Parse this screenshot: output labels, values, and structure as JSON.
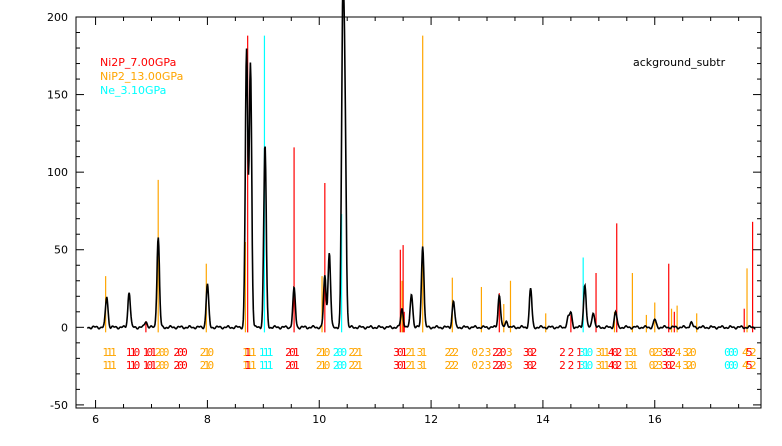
{
  "chart_data": {
    "type": "line",
    "title": "ackground_subtr",
    "xlabel": "",
    "ylabel": "",
    "xlim": [
      5.65,
      17.9
    ],
    "ylim": [
      -52,
      200
    ],
    "x_ticks": [
      6,
      8,
      10,
      12,
      14,
      16
    ],
    "y_ticks": [
      -50,
      0,
      50,
      100,
      150,
      200
    ],
    "grid": false,
    "legend_position": "top-left",
    "colors": {
      "axis": "#000000",
      "pattern": "#000000",
      "ni2p": "#ff0000",
      "nip2": "#ffa500",
      "ne": "#00ffff"
    },
    "series": [
      {
        "name": "Ni2P_7.00GPa",
        "color": "#ff0000",
        "sticks": [
          [
            6.9,
            4
          ],
          [
            8.72,
            188
          ],
          [
            9.55,
            116
          ],
          [
            10.1,
            93
          ],
          [
            11.45,
            50
          ],
          [
            11.5,
            53
          ],
          [
            11.52,
            10
          ],
          [
            13.22,
            22
          ],
          [
            14.5,
            8
          ],
          [
            14.95,
            35
          ],
          [
            15.32,
            67
          ],
          [
            16.25,
            41
          ],
          [
            16.35,
            10
          ],
          [
            17.6,
            12
          ],
          [
            17.75,
            68
          ]
        ]
      },
      {
        "name": "NiP2_13.00GPa",
        "color": "#ffa500",
        "sticks": [
          [
            6.18,
            33
          ],
          [
            7.12,
            95
          ],
          [
            7.98,
            41
          ],
          [
            8.68,
            55
          ],
          [
            10.05,
            33
          ],
          [
            11.48,
            30
          ],
          [
            11.85,
            188
          ],
          [
            12.38,
            32
          ],
          [
            12.9,
            26
          ],
          [
            13.3,
            15
          ],
          [
            13.42,
            30
          ],
          [
            14.05,
            9
          ],
          [
            15.28,
            10
          ],
          [
            15.6,
            35
          ],
          [
            15.85,
            8
          ],
          [
            16.0,
            16
          ],
          [
            16.3,
            12
          ],
          [
            16.4,
            14
          ],
          [
            16.75,
            9
          ],
          [
            17.65,
            38
          ]
        ]
      },
      {
        "name": "Ne_3.10GPa",
        "color": "#00ffff",
        "sticks": [
          [
            9.02,
            188
          ],
          [
            10.4,
            73
          ],
          [
            14.72,
            45
          ]
        ]
      }
    ],
    "measured_pattern": {
      "name": "ackground_subtr",
      "peaks": [
        [
          6.2,
          20
        ],
        [
          6.6,
          23
        ],
        [
          6.9,
          4
        ],
        [
          7.12,
          58
        ],
        [
          8.0,
          28
        ],
        [
          8.7,
          178
        ],
        [
          8.77,
          170
        ],
        [
          9.03,
          118
        ],
        [
          9.55,
          25
        ],
        [
          10.1,
          33
        ],
        [
          10.18,
          48
        ],
        [
          10.42,
          191
        ],
        [
          10.46,
          130
        ],
        [
          11.48,
          12
        ],
        [
          11.65,
          22
        ],
        [
          11.85,
          53
        ],
        [
          12.4,
          17
        ],
        [
          13.22,
          21
        ],
        [
          13.35,
          4
        ],
        [
          13.78,
          25
        ],
        [
          14.45,
          6
        ],
        [
          14.5,
          9
        ],
        [
          14.75,
          28
        ],
        [
          14.9,
          10
        ],
        [
          15.3,
          10
        ],
        [
          16.0,
          5
        ],
        [
          16.65,
          3
        ]
      ],
      "baseline": 0
    },
    "hkl_labels": [
      {
        "x": 6.18,
        "lines": [
          "1",
          "1"
        ],
        "color": "#ffa500"
      },
      {
        "x": 6.25,
        "lines": [
          "1",
          "1"
        ],
        "color": "#ffa500"
      },
      {
        "x": 6.32,
        "lines": [
          "1",
          "1"
        ],
        "color": "#ffa500"
      },
      {
        "x": 6.6,
        "lines": [
          "1",
          "1"
        ],
        "color": "#ff0000"
      },
      {
        "x": 6.67,
        "lines": [
          "1",
          "1"
        ],
        "color": "#ff0000"
      },
      {
        "x": 6.74,
        "lines": [
          "0",
          "0"
        ],
        "color": "#ff0000"
      },
      {
        "x": 6.9,
        "lines": [
          "1",
          "1"
        ],
        "color": "#ff0000"
      },
      {
        "x": 6.97,
        "lines": [
          "0",
          "0"
        ],
        "color": "#ff0000"
      },
      {
        "x": 7.04,
        "lines": [
          "1",
          "1"
        ],
        "color": "#ff0000"
      },
      {
        "x": 7.12,
        "lines": [
          "2",
          "2"
        ],
        "color": "#ffa500"
      },
      {
        "x": 7.19,
        "lines": [
          "0",
          "0"
        ],
        "color": "#ffa500"
      },
      {
        "x": 7.26,
        "lines": [
          "0",
          "0"
        ],
        "color": "#ffa500"
      },
      {
        "x": 7.45,
        "lines": [
          "2",
          "2"
        ],
        "color": "#ff0000"
      },
      {
        "x": 7.52,
        "lines": [
          "0",
          "0"
        ],
        "color": "#ff0000"
      },
      {
        "x": 7.59,
        "lines": [
          "0",
          "0"
        ],
        "color": "#ff0000"
      },
      {
        "x": 7.92,
        "lines": [
          "2",
          "2"
        ],
        "color": "#ffa500"
      },
      {
        "x": 7.99,
        "lines": [
          "1",
          "1"
        ],
        "color": "#ffa500"
      },
      {
        "x": 8.06,
        "lines": [
          "0",
          "0"
        ],
        "color": "#ffa500"
      },
      {
        "x": 8.68,
        "lines": [
          "1",
          "1"
        ],
        "color": "#ffa500"
      },
      {
        "x": 8.75,
        "lines": [
          "1",
          "1"
        ],
        "color": "#ffa500"
      },
      {
        "x": 8.82,
        "lines": [
          "1",
          "1"
        ],
        "color": "#ffa500"
      },
      {
        "x": 8.72,
        "lines": [
          "1",
          "1"
        ],
        "color": "#ff0000"
      },
      {
        "x": 8.98,
        "lines": [
          "1",
          "1"
        ],
        "color": "#00ffff"
      },
      {
        "x": 9.05,
        "lines": [
          "1",
          "1"
        ],
        "color": "#00ffff"
      },
      {
        "x": 9.12,
        "lines": [
          "1",
          "1"
        ],
        "color": "#00ffff"
      },
      {
        "x": 9.45,
        "lines": [
          "2",
          "2"
        ],
        "color": "#ff0000"
      },
      {
        "x": 9.52,
        "lines": [
          "0",
          "0"
        ],
        "color": "#ff0000"
      },
      {
        "x": 9.59,
        "lines": [
          "1",
          "1"
        ],
        "color": "#ff0000"
      },
      {
        "x": 10.0,
        "lines": [
          "2",
          "2"
        ],
        "color": "#ffa500"
      },
      {
        "x": 10.07,
        "lines": [
          "1",
          "1"
        ],
        "color": "#ffa500"
      },
      {
        "x": 10.14,
        "lines": [
          "0",
          "0"
        ],
        "color": "#ffa500"
      },
      {
        "x": 10.3,
        "lines": [
          "2",
          "2"
        ],
        "color": "#00ffff"
      },
      {
        "x": 10.37,
        "lines": [
          "0",
          "0"
        ],
        "color": "#00ffff"
      },
      {
        "x": 10.44,
        "lines": [
          "0",
          "0"
        ],
        "color": "#00ffff"
      },
      {
        "x": 10.58,
        "lines": [
          "2",
          "2"
        ],
        "color": "#ffa500"
      },
      {
        "x": 10.65,
        "lines": [
          "2",
          "2"
        ],
        "color": "#ffa500"
      },
      {
        "x": 10.72,
        "lines": [
          "1",
          "1"
        ],
        "color": "#ffa500"
      },
      {
        "x": 11.38,
        "lines": [
          "3",
          "3"
        ],
        "color": "#ff0000"
      },
      {
        "x": 11.45,
        "lines": [
          "0",
          "0"
        ],
        "color": "#ff0000"
      },
      {
        "x": 11.52,
        "lines": [
          "1",
          "1"
        ],
        "color": "#ff0000"
      },
      {
        "x": 11.6,
        "lines": [
          "2",
          "2"
        ],
        "color": "#ffa500"
      },
      {
        "x": 11.67,
        "lines": [
          "1",
          "1"
        ],
        "color": "#ffa500"
      },
      {
        "x": 11.8,
        "lines": [
          "3",
          "3"
        ],
        "color": "#ffa500"
      },
      {
        "x": 11.87,
        "lines": [
          "1",
          "1"
        ],
        "color": "#ffa500"
      },
      {
        "x": 12.3,
        "lines": [
          "2",
          "2"
        ],
        "color": "#ffa500"
      },
      {
        "x": 12.37,
        "lines": [
          "2",
          "2"
        ],
        "color": "#ffa500"
      },
      {
        "x": 12.44,
        "lines": [
          "2",
          "2"
        ],
        "color": "#ffa500"
      },
      {
        "x": 12.78,
        "lines": [
          "0",
          "0"
        ],
        "color": "#ffa500"
      },
      {
        "x": 12.9,
        "lines": [
          "2",
          "2"
        ],
        "color": "#ffa500"
      },
      {
        "x": 13.02,
        "lines": [
          "3",
          "3"
        ],
        "color": "#ffa500"
      },
      {
        "x": 13.15,
        "lines": [
          "2",
          "2"
        ],
        "color": "#ff0000"
      },
      {
        "x": 13.22,
        "lines": [
          "2",
          "2"
        ],
        "color": "#ff0000"
      },
      {
        "x": 13.29,
        "lines": [
          "0",
          "0"
        ],
        "color": "#ff0000"
      },
      {
        "x": 13.4,
        "lines": [
          "3",
          "3"
        ],
        "color": "#ffa500"
      },
      {
        "x": 13.7,
        "lines": [
          "3",
          "3"
        ],
        "color": "#ff0000"
      },
      {
        "x": 13.77,
        "lines": [
          "0",
          "0"
        ],
        "color": "#ff0000"
      },
      {
        "x": 13.84,
        "lines": [
          "2",
          "2"
        ],
        "color": "#ff0000"
      },
      {
        "x": 14.35,
        "lines": [
          "2",
          "2"
        ],
        "color": "#ff0000"
      },
      {
        "x": 14.5,
        "lines": [
          "2",
          "2"
        ],
        "color": "#ff0000"
      },
      {
        "x": 14.65,
        "lines": [
          "1",
          "1"
        ],
        "color": "#ff0000"
      },
      {
        "x": 14.7,
        "lines": [
          "3",
          "3"
        ],
        "color": "#00ffff"
      },
      {
        "x": 14.77,
        "lines": [
          "1",
          "1"
        ],
        "color": "#00ffff"
      },
      {
        "x": 14.84,
        "lines": [
          "0",
          "0"
        ],
        "color": "#00ffff"
      },
      {
        "x": 15.0,
        "lines": [
          "3",
          "3"
        ],
        "color": "#ffa500"
      },
      {
        "x": 15.07,
        "lines": [
          "1",
          "1"
        ],
        "color": "#ffa500"
      },
      {
        "x": 15.14,
        "lines": [
          "1",
          "1"
        ],
        "color": "#ffa500"
      },
      {
        "x": 15.22,
        "lines": [
          "4",
          "4"
        ],
        "color": "#ff0000"
      },
      {
        "x": 15.29,
        "lines": [
          "0",
          "0"
        ],
        "color": "#ff0000"
      },
      {
        "x": 15.36,
        "lines": [
          "2",
          "2"
        ],
        "color": "#ff0000"
      },
      {
        "x": 15.5,
        "lines": [
          "1",
          "1"
        ],
        "color": "#ffa500"
      },
      {
        "x": 15.57,
        "lines": [
          "3",
          "3"
        ],
        "color": "#ffa500"
      },
      {
        "x": 15.64,
        "lines": [
          "1",
          "1"
        ],
        "color": "#ffa500"
      },
      {
        "x": 15.95,
        "lines": [
          "0",
          "0"
        ],
        "color": "#ffa500"
      },
      {
        "x": 16.02,
        "lines": [
          "2",
          "2"
        ],
        "color": "#ffa500"
      },
      {
        "x": 16.09,
        "lines": [
          "3",
          "3"
        ],
        "color": "#ffa500"
      },
      {
        "x": 16.18,
        "lines": [
          "3",
          "3"
        ],
        "color": "#ff0000"
      },
      {
        "x": 16.25,
        "lines": [
          "0",
          "0"
        ],
        "color": "#ff0000"
      },
      {
        "x": 16.32,
        "lines": [
          "2",
          "2"
        ],
        "color": "#ff0000"
      },
      {
        "x": 16.42,
        "lines": [
          "4",
          "4"
        ],
        "color": "#ffa500"
      },
      {
        "x": 16.55,
        "lines": [
          "3",
          "3"
        ],
        "color": "#ffa500"
      },
      {
        "x": 16.62,
        "lines": [
          "2",
          "2"
        ],
        "color": "#ffa500"
      },
      {
        "x": 16.69,
        "lines": [
          "0",
          "0"
        ],
        "color": "#ffa500"
      },
      {
        "x": 17.3,
        "lines": [
          "0",
          "0"
        ],
        "color": "#00ffff"
      },
      {
        "x": 17.37,
        "lines": [
          "0",
          "0"
        ],
        "color": "#00ffff"
      },
      {
        "x": 17.44,
        "lines": [
          "0",
          "0"
        ],
        "color": "#00ffff"
      },
      {
        "x": 17.62,
        "lines": [
          "4",
          "4"
        ],
        "color": "#ffa500"
      },
      {
        "x": 17.69,
        "lines": [
          "5",
          "5"
        ],
        "color": "#ff0000"
      },
      {
        "x": 17.76,
        "lines": [
          "2",
          "2"
        ],
        "color": "#ffa500"
      }
    ]
  },
  "legend": [
    {
      "label": "Ni2P_7.00GPa",
      "color": "#ff0000"
    },
    {
      "label": "NiP2_13.00GPa",
      "color": "#ffa500"
    },
    {
      "label": "Ne_3.10GPa",
      "color": "#00ffff"
    }
  ],
  "top_right_label": "ackground_subtr"
}
